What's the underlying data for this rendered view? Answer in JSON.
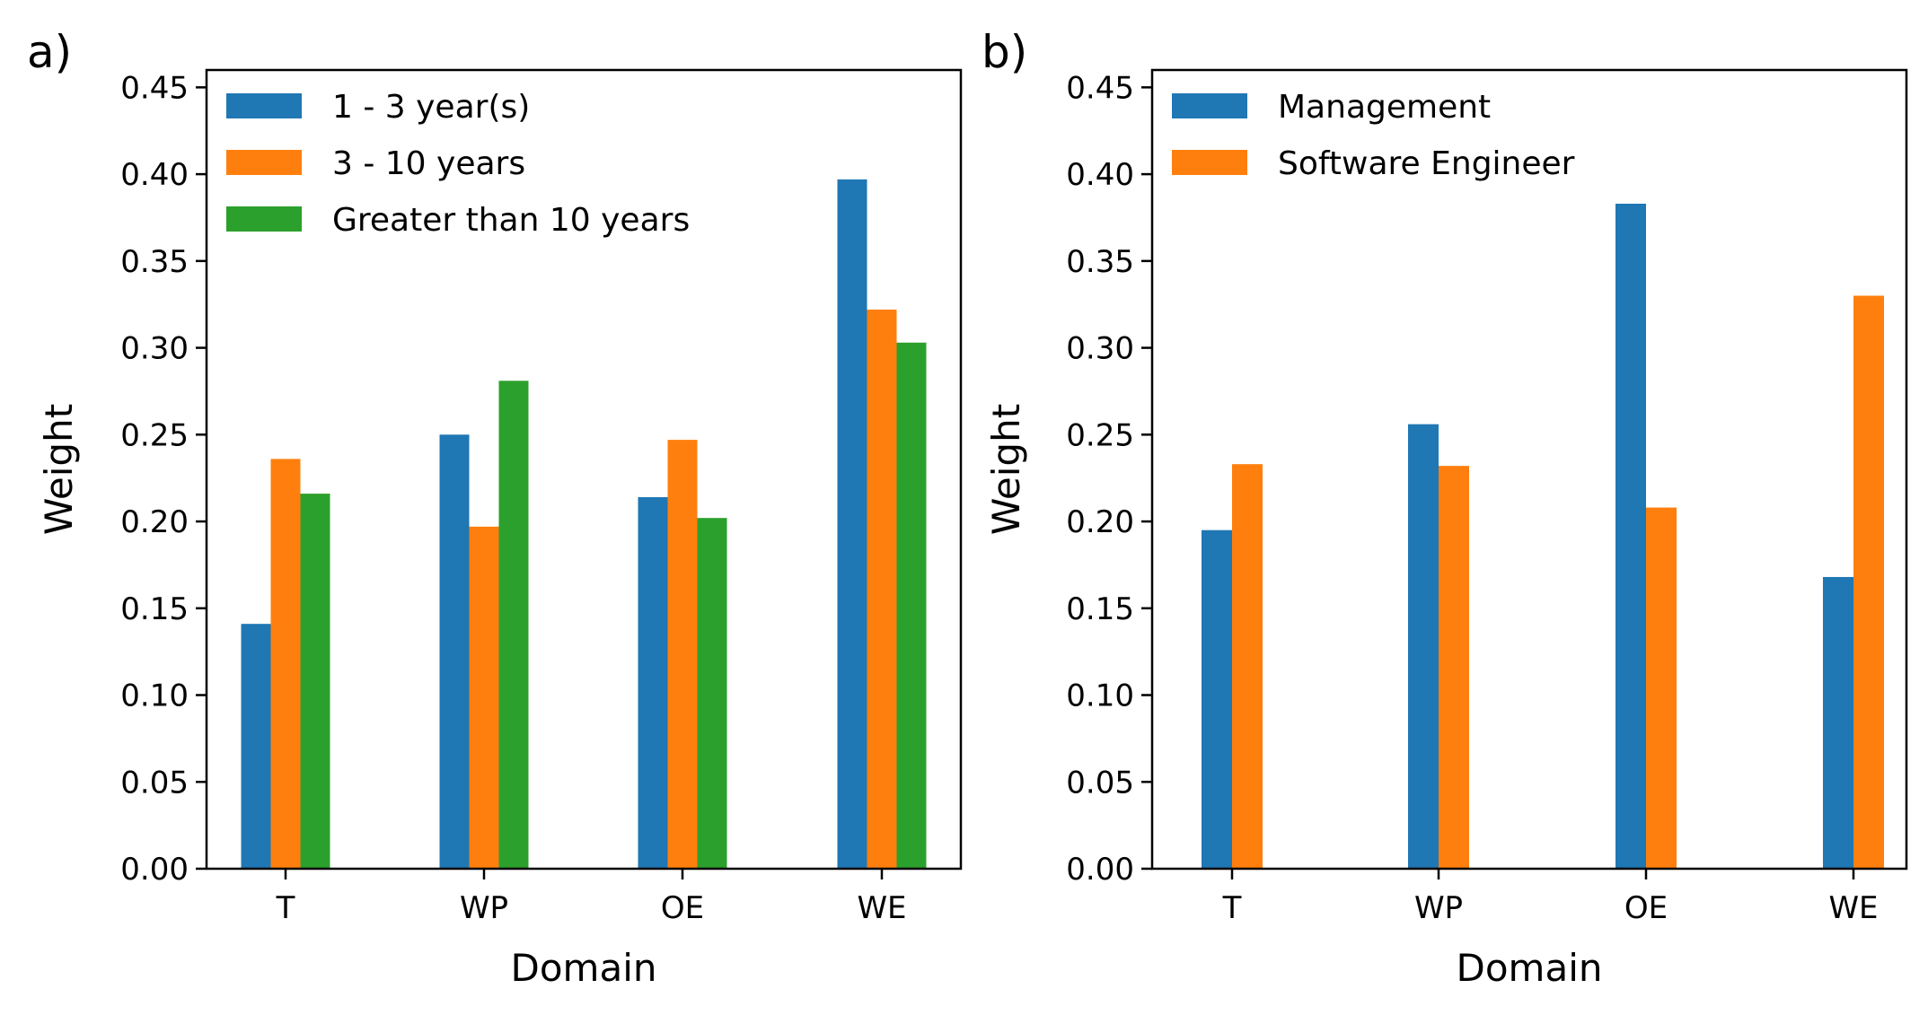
{
  "chart_data": [
    {
      "type": "bar",
      "panel_label": "a)",
      "categories": [
        "T",
        "WP",
        "OE",
        "WE"
      ],
      "series": [
        {
          "name": "1 - 3 year(s)",
          "color": "#1f77b4",
          "values": [
            0.141,
            0.25,
            0.214,
            0.397
          ]
        },
        {
          "name": "3 - 10 years",
          "color": "#ff7f0e",
          "values": [
            0.236,
            0.197,
            0.247,
            0.322
          ]
        },
        {
          "name": "Greater than 10 years",
          "color": "#2ca02c",
          "values": [
            0.216,
            0.281,
            0.202,
            0.303
          ]
        }
      ],
      "xlabel": "Domain",
      "ylabel": "Weight",
      "ylim": [
        0,
        0.46
      ],
      "yticks": [
        "0.00",
        "0.05",
        "0.10",
        "0.15",
        "0.20",
        "0.25",
        "0.30",
        "0.35",
        "0.40",
        "0.45"
      ],
      "grid": false,
      "legend": "top-left"
    },
    {
      "type": "bar",
      "panel_label": "b)",
      "categories": [
        "T",
        "WP",
        "OE",
        "WE"
      ],
      "series": [
        {
          "name": "Management",
          "color": "#1f77b4",
          "values": [
            0.195,
            0.256,
            0.383,
            0.168
          ]
        },
        {
          "name": "Software Engineer",
          "color": "#ff7f0e",
          "values": [
            0.233,
            0.232,
            0.208,
            0.33
          ]
        }
      ],
      "xlabel": "Domain",
      "ylabel": "Weight",
      "ylim": [
        0,
        0.46
      ],
      "yticks": [
        "0.00",
        "0.05",
        "0.10",
        "0.15",
        "0.20",
        "0.25",
        "0.30",
        "0.35",
        "0.40",
        "0.45"
      ],
      "grid": false,
      "legend": "top-left"
    }
  ]
}
